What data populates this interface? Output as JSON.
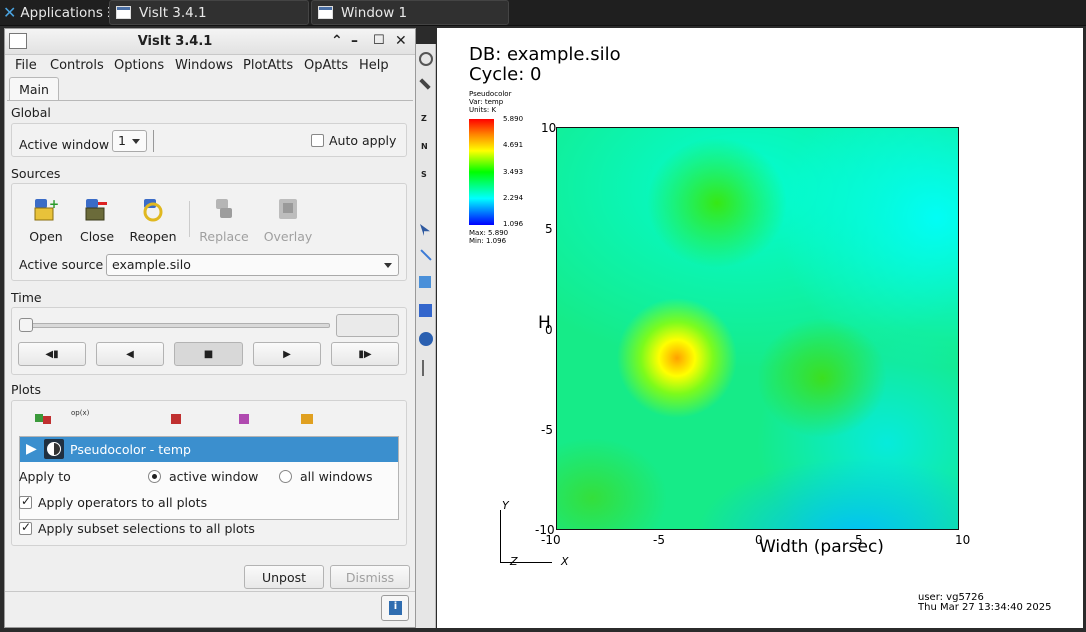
{
  "taskbar": {
    "applications": "Applications",
    "app_window": "VisIt 3.4.1",
    "vis_window": "Window 1"
  },
  "window": {
    "title": "VisIt 3.4.1"
  },
  "menu": [
    "File",
    "Controls",
    "Options",
    "Windows",
    "PlotAtts",
    "OpAtts",
    "Help"
  ],
  "tabs": {
    "main": "Main"
  },
  "global": {
    "title": "Global",
    "active_window_label": "Active window",
    "active_window_value": "1",
    "auto_apply_label": "Auto apply"
  },
  "sources": {
    "title": "Sources",
    "open": "Open",
    "close": "Close",
    "reopen": "Reopen",
    "replace": "Replace",
    "overlay": "Overlay",
    "active_source_label": "Active source",
    "active_source_value": "example.silo"
  },
  "time": {
    "title": "Time"
  },
  "plots": {
    "title": "Plots",
    "plot_item": "Pseudocolor - temp",
    "apply_to_label": "Apply to",
    "active_window": "active window",
    "all_windows": "all windows",
    "apply_operators": "Apply operators to all plots",
    "apply_subset": "Apply subset selections to all plots"
  },
  "buttons": {
    "unpost": "Unpost",
    "dismiss": "Dismiss"
  },
  "vis": {
    "db": "DB: example.silo",
    "cycle": "Cycle: 0",
    "legend_title": "Pseudocolor",
    "legend_var": "Var: temp",
    "legend_units": "Units: K",
    "legend_ticks": [
      "5.890",
      "4.691",
      "3.493",
      "2.294",
      "1.096"
    ],
    "legend_max": "Max:  5.890",
    "legend_min": "Min:  1.096",
    "y_ticks": [
      "10",
      "5",
      "0",
      "-5",
      "-10"
    ],
    "x_ticks": [
      "-10",
      "-5",
      "0",
      "5",
      "10"
    ],
    "x_label": "Width (parsec)",
    "y_label": "H",
    "triad_y": "Y",
    "triad_x": "X",
    "triad_z": "Z",
    "user": "user: vg5726",
    "date": "Thu Mar 27 13:34:40 2025"
  }
}
